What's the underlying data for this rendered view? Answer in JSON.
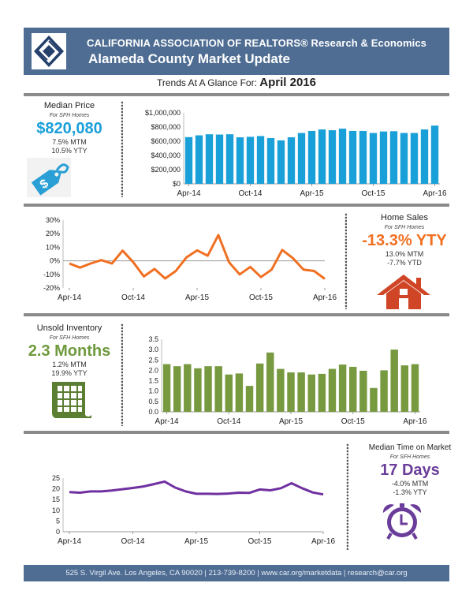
{
  "header": {
    "org": "CALIFORNIA ASSOCIATION OF REALTORS® Research & Economics",
    "title": "Alameda County Market Update",
    "subtitle_prefix": "Trends At A Glance For:",
    "subtitle_period": "April 2016"
  },
  "panels": {
    "median_price": {
      "title": "Median Price",
      "sub": "For SFH Homes",
      "big": "$820,080",
      "line1": "7.5% MTM",
      "line2": "10.5% YTY",
      "color": "#1a9fd9",
      "icon": "price-tag-icon"
    },
    "home_sales": {
      "title": "Home Sales",
      "sub": "For SFH Homes",
      "big": "-13.3% YTY",
      "line1": "13.0% MTM",
      "line2": "-7.7% YTD",
      "color": "#f07022",
      "icon": "house-icon"
    },
    "inventory": {
      "title": "Unsold Inventory",
      "sub": "For SFH Homes",
      "big": "2.3 Months",
      "line1": "1.2% MTM",
      "line2": "19.9% YTY",
      "color": "#6f9a3d",
      "icon": "calendar-icon"
    },
    "time_on_market": {
      "title": "Median Time on Market",
      "sub": "For SFH Homes",
      "big": "17 Days",
      "line1": "-4.0% MTM",
      "line2": "-1.3% YTY",
      "color": "#6a3d9a",
      "icon": "alarm-clock-icon"
    }
  },
  "footer": {
    "text": "525 S. Virgil Ave. Los Angeles, CA 90020 | 213-739-8200 | www.car.org/marketdata | research@car.org"
  },
  "chart_data": [
    {
      "type": "bar",
      "title": "Median Price",
      "color": "#1aa0d8",
      "categories": [
        "Apr-14",
        "May-14",
        "Jun-14",
        "Jul-14",
        "Aug-14",
        "Sep-14",
        "Oct-14",
        "Nov-14",
        "Dec-14",
        "Jan-15",
        "Feb-15",
        "Mar-15",
        "Apr-15",
        "May-15",
        "Jun-15",
        "Jul-15",
        "Aug-15",
        "Sep-15",
        "Oct-15",
        "Nov-15",
        "Dec-15",
        "Jan-16",
        "Feb-16",
        "Mar-16",
        "Apr-16"
      ],
      "values": [
        658000,
        683000,
        698000,
        694000,
        698000,
        655000,
        662000,
        673000,
        644000,
        612000,
        655000,
        716000,
        745000,
        766000,
        755000,
        777000,
        745000,
        745000,
        716000,
        737000,
        741000,
        716000,
        716000,
        766000,
        820080
      ],
      "tick_labels": [
        "Apr-14",
        "Oct-14",
        "Apr-15",
        "Oct-15",
        "Apr-16"
      ],
      "yticks": [
        "$0",
        "$200,000",
        "$400,000",
        "$600,000",
        "$800,000",
        "$1,000,000"
      ],
      "ylim": [
        0,
        1000000
      ]
    },
    {
      "type": "line",
      "title": "Home Sales YTY % change",
      "color": "#f07022",
      "categories": [
        "Apr-14",
        "May-14",
        "Jun-14",
        "Jul-14",
        "Aug-14",
        "Sep-14",
        "Oct-14",
        "Nov-14",
        "Dec-14",
        "Jan-15",
        "Feb-15",
        "Mar-15",
        "Apr-15",
        "May-15",
        "Jun-15",
        "Jul-15",
        "Aug-15",
        "Sep-15",
        "Oct-15",
        "Nov-15",
        "Dec-15",
        "Jan-16",
        "Feb-16",
        "Mar-16",
        "Apr-16"
      ],
      "values": [
        -2,
        -5,
        -2,
        0.5,
        -2,
        7.5,
        -1,
        -11.5,
        -6,
        -13,
        -7.5,
        2.5,
        7.7,
        3.8,
        19,
        -1,
        -10,
        -4.5,
        -12,
        -6.5,
        8,
        2,
        -6.5,
        -7.5,
        -13.3
      ],
      "tick_labels": [
        "Apr-14",
        "Oct-14",
        "Apr-15",
        "Oct-15",
        "Apr-16"
      ],
      "yticks": [
        "-20%",
        "-10%",
        "0%",
        "10%",
        "20%",
        "30%"
      ],
      "ylim": [
        -20,
        30
      ]
    },
    {
      "type": "bar",
      "title": "Unsold Inventory (Months)",
      "color": "#77993f",
      "categories": [
        "Apr-14",
        "May-14",
        "Jun-14",
        "Jul-14",
        "Aug-14",
        "Sep-14",
        "Oct-14",
        "Nov-14",
        "Dec-14",
        "Jan-15",
        "Feb-15",
        "Mar-15",
        "Apr-15",
        "May-15",
        "Jun-15",
        "Jul-15",
        "Aug-15",
        "Sep-15",
        "Oct-15",
        "Nov-15",
        "Dec-15",
        "Jan-16",
        "Feb-16",
        "Mar-16",
        "Apr-16"
      ],
      "values": [
        2.3,
        2.2,
        2.3,
        2.1,
        2.2,
        2.2,
        1.8,
        1.85,
        1.25,
        2.33,
        2.86,
        2.07,
        1.9,
        1.9,
        1.8,
        1.83,
        2.07,
        2.28,
        2.17,
        1.98,
        1.15,
        2.0,
        3.0,
        2.24,
        2.3
      ],
      "tick_labels": [
        "Apr-14",
        "Oct-14",
        "Apr-15",
        "Oct-15",
        "Apr-16"
      ],
      "yticks": [
        "0.0",
        "0.5",
        "1.0",
        "1.5",
        "2.0",
        "2.5",
        "3.0",
        "3.5"
      ],
      "ylim": [
        0,
        3.5
      ]
    },
    {
      "type": "line",
      "title": "Median Time on Market (Days)",
      "color": "#7030a0",
      "categories": [
        "Apr-14",
        "May-14",
        "Jun-14",
        "Jul-14",
        "Aug-14",
        "Sep-14",
        "Oct-14",
        "Nov-14",
        "Dec-14",
        "Jan-15",
        "Feb-15",
        "Mar-15",
        "Apr-15",
        "May-15",
        "Jun-15",
        "Jul-15",
        "Aug-15",
        "Sep-15",
        "Oct-15",
        "Nov-15",
        "Dec-15",
        "Jan-16",
        "Feb-16",
        "Mar-16",
        "Apr-16"
      ],
      "values": [
        18.5,
        18.2,
        18.8,
        18.8,
        19.2,
        19.8,
        20.4,
        21.1,
        22.2,
        23.4,
        20.6,
        18.8,
        17.7,
        17.7,
        17.6,
        17.8,
        18.2,
        18.1,
        19.7,
        19.3,
        20.3,
        22.6,
        20.3,
        18.3,
        17.4
      ],
      "tick_labels": [
        "Apr-14",
        "Oct-14",
        "Apr-15",
        "Oct-15",
        "Apr-16"
      ],
      "yticks": [
        "0",
        "5",
        "10",
        "15",
        "20",
        "25"
      ],
      "ylim": [
        0,
        25
      ]
    }
  ]
}
